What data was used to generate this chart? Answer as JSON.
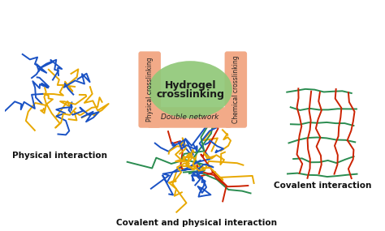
{
  "background_color": "#ffffff",
  "colors": {
    "yellow": "#E8A800",
    "blue": "#1A52C4",
    "green": "#2A8C50",
    "red": "#CC2200",
    "salmon": "#F2AA88",
    "light_green": "#90C878",
    "text_dark": "#111111"
  },
  "labels": {
    "physical": "Physical interaction",
    "covalent": "Covalent interaction",
    "double": "Covalent and physical interaction",
    "hydrogel_line1": "Hydrogel",
    "hydrogel_line2": "crosslinking",
    "physical_cross": "Physical crosslinking",
    "chemical_cross": "Chemical crosslinking",
    "double_network": "Double network"
  },
  "layout": {
    "fig_width": 4.74,
    "fig_height": 2.85,
    "dpi": 100,
    "xlim": [
      0,
      474
    ],
    "ylim": [
      0,
      285
    ]
  }
}
